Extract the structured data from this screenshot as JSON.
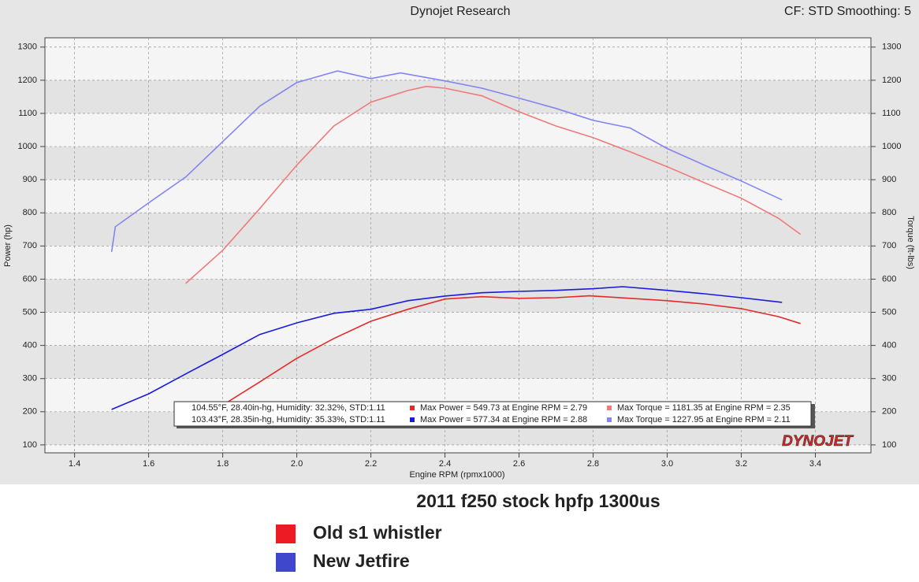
{
  "chart_data": {
    "type": "line",
    "title": "Dynojet Research",
    "subtitle": "CF: STD Smoothing: 5",
    "x_label": "Engine RPM (rpmx1000)",
    "y_label": "Power (hp)",
    "y2_label": "Torque (ft-lbs)",
    "logo": "DYNOJET",
    "caption": "2011 f250 stock hpfp 1300us",
    "xlim": [
      1.32,
      3.55
    ],
    "xticks": [
      1.4,
      1.6,
      1.8,
      {
        "value": 2,
        "label": "2.0"
      },
      2.2,
      2.4,
      2.6,
      2.8,
      {
        "value": 3,
        "label": "3.0"
      },
      3.2,
      3.4
    ],
    "ylim": [
      76,
      1328
    ],
    "yticks": [
      100,
      200,
      300,
      400,
      500,
      600,
      700,
      800,
      900,
      1000,
      1100,
      1200,
      1300
    ],
    "y2lim": [
      76,
      1328
    ],
    "y2ticks": [
      100,
      200,
      300,
      400,
      500,
      600,
      700,
      800,
      900,
      1000,
      1100,
      1200,
      1300
    ],
    "grid": true,
    "series": [
      {
        "color": "#e42a2a",
        "x": [
          1.8,
          1.9,
          2.0,
          2.1,
          2.2,
          2.3,
          2.4,
          2.5,
          2.6,
          2.7,
          2.79,
          2.9,
          3.0,
          3.1,
          3.2,
          3.3,
          3.36
        ],
        "values": [
          220,
          290,
          361,
          421,
          473,
          509,
          540,
          547,
          542,
          544,
          549.73,
          542,
          535,
          525,
          511,
          487,
          466
        ]
      },
      {
        "color": "#f07a7a",
        "x": [
          1.7,
          1.8,
          1.9,
          2.0,
          2.1,
          2.2,
          2.3,
          2.35,
          2.4,
          2.5,
          2.6,
          2.7,
          2.8,
          2.9,
          3.0,
          3.1,
          3.2,
          3.3,
          3.36
        ],
        "values": [
          587,
          687,
          813,
          944,
          1062,
          1134,
          1169,
          1181.35,
          1176,
          1153,
          1105,
          1062,
          1027,
          984,
          939,
          891,
          844,
          784,
          735
        ]
      },
      {
        "color": "#1a1ade",
        "x": [
          1.5,
          1.6,
          1.7,
          1.8,
          1.9,
          2.0,
          2.1,
          2.2,
          2.3,
          2.4,
          2.5,
          2.6,
          2.7,
          2.8,
          2.88,
          3.0,
          3.1,
          3.2,
          3.31
        ],
        "values": [
          207,
          254,
          314,
          373,
          433,
          468,
          497,
          509,
          535,
          549,
          559,
          563,
          566,
          571,
          577.34,
          566,
          556,
          544,
          530
        ]
      },
      {
        "color": "#8484f2",
        "x": [
          1.5,
          1.51,
          1.6,
          1.7,
          1.8,
          1.9,
          2.0,
          2.11,
          2.2,
          2.28,
          2.4,
          2.5,
          2.6,
          2.7,
          2.8,
          2.9,
          3.0,
          3.1,
          3.2,
          3.31
        ],
        "values": [
          682,
          758,
          830,
          908,
          1015,
          1122,
          1193,
          1227.95,
          1205,
          1222,
          1198,
          1176,
          1146,
          1115,
          1079,
          1056,
          994,
          944,
          896,
          839
        ]
      }
    ],
    "info_rows": [
      [
        "104.55°F, 28.40in-hg, Humidity: 32.32%, STD:1.11",
        "Max Power = 549.73 at Engine RPM = 2.79",
        "Max Torque = 1181.35 at Engine RPM = 2.35"
      ],
      [
        "103.43°F, 28.35in-hg, Humidity: 35.33%, STD:1.11",
        "Max Power = 577.34 at Engine RPM = 2.88",
        "Max Torque = 1227.95 at Engine RPM = 2.11"
      ]
    ],
    "legend": [
      {
        "name": "Old s1 whistler",
        "color": "#ed1c24"
      },
      {
        "name": "New Jetfire",
        "color": "#3f48cc"
      }
    ]
  }
}
